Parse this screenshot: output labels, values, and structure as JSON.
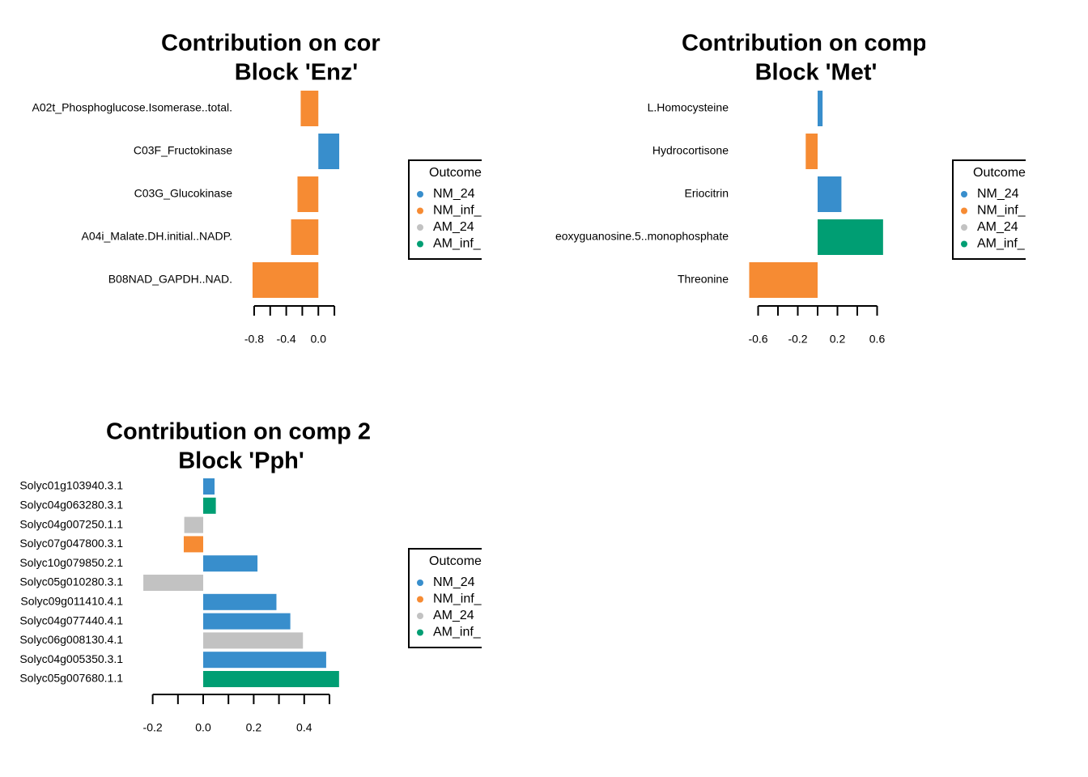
{
  "chart_data": [
    {
      "type": "bar",
      "orientation": "horizontal",
      "title_lines": [
        "Contribution on cor",
        "Block 'Enz'"
      ],
      "categories": [
        "A02t_Phosphoglucose.Isomerase..total.",
        "C03F_Fructokinase",
        "C03G_Glucokinase",
        "A04i_Malate.DH.initial..NADP.",
        "B08NAD_GAPDH..NAD."
      ],
      "values": [
        -0.22,
        0.26,
        -0.26,
        -0.34,
        -0.82
      ],
      "colors": [
        "#F68B33",
        "#388ECC",
        "#F68B33",
        "#F68B33",
        "#F68B33"
      ],
      "xlim": [
        -0.86,
        0.3
      ],
      "xticks": [
        -0.8,
        -0.4,
        {
          "value": 0,
          "label": "0.0"
        }
      ],
      "xminor_ticks": [
        -0.6,
        -0.2,
        0.2
      ],
      "legend": {
        "title": "Outcome",
        "items": [
          {
            "name": "NM_24",
            "color": "#388ECC"
          },
          {
            "name": "NM_inf_",
            "color": "#F68B33"
          },
          {
            "name": "AM_24",
            "color": "#C2C2C2"
          },
          {
            "name": "AM_inf_",
            "color": "#009E73"
          }
        ]
      }
    },
    {
      "type": "bar",
      "orientation": "horizontal",
      "title_lines": [
        "Contribution on comp",
        "Block 'Met'"
      ],
      "categories": [
        "L.Homocysteine",
        "Hydrocortisone",
        "Eriocitrin",
        "eoxyguanosine.5..monophosphate",
        "Threonine"
      ],
      "values": [
        0.05,
        -0.12,
        0.24,
        0.66,
        -0.69
      ],
      "colors": [
        "#388ECC",
        "#F68B33",
        "#388ECC",
        "#009E73",
        "#F68B33"
      ],
      "xlim": [
        -0.74,
        0.7
      ],
      "xticks": [
        -0.6,
        -0.2,
        0.2,
        0.6
      ],
      "xminor_ticks": [
        -0.4,
        0,
        0.4
      ],
      "legend": {
        "title": "Outcome",
        "items": [
          {
            "name": "NM_24",
            "color": "#388ECC"
          },
          {
            "name": "NM_inf_",
            "color": "#F68B33"
          },
          {
            "name": "AM_24",
            "color": "#C2C2C2"
          },
          {
            "name": "AM_inf_",
            "color": "#009E73"
          }
        ]
      }
    },
    {
      "type": "bar",
      "orientation": "horizontal",
      "title_lines": [
        "Contribution on comp 2",
        "Block 'Pph'"
      ],
      "categories": [
        "Solyc01g103940.3.1",
        "Solyc04g063280.3.1",
        "Solyc04g007250.1.1",
        "Solyc07g047800.3.1",
        "Solyc10g079850.2.1",
        "Solyc05g010280.3.1",
        "Solyc09g011410.4.1",
        "Solyc04g077440.4.1",
        "Solyc06g008130.4.1",
        "Solyc04g005350.3.1",
        "Solyc05g007680.1.1"
      ],
      "values": [
        0.045,
        0.05,
        -0.075,
        -0.077,
        0.215,
        -0.237,
        0.29,
        0.345,
        0.395,
        0.487,
        0.538
      ],
      "colors": [
        "#388ECC",
        "#009E73",
        "#C2C2C2",
        "#F68B33",
        "#388ECC",
        "#C2C2C2",
        "#388ECC",
        "#388ECC",
        "#C2C2C2",
        "#388ECC",
        "#009E73"
      ],
      "xlim": [
        -0.26,
        0.56
      ],
      "xticks": [
        -0.2,
        {
          "value": 0,
          "label": "0.0"
        },
        0.2,
        0.4
      ],
      "xminor_ticks": [
        -0.1,
        0.1,
        0.3,
        0.5
      ],
      "legend": {
        "title": "Outcome",
        "items": [
          {
            "name": "NM_24",
            "color": "#388ECC"
          },
          {
            "name": "NM_inf_",
            "color": "#F68B33"
          },
          {
            "name": "AM_24",
            "color": "#C2C2C2"
          },
          {
            "name": "AM_inf_",
            "color": "#009E73"
          }
        ]
      }
    }
  ]
}
